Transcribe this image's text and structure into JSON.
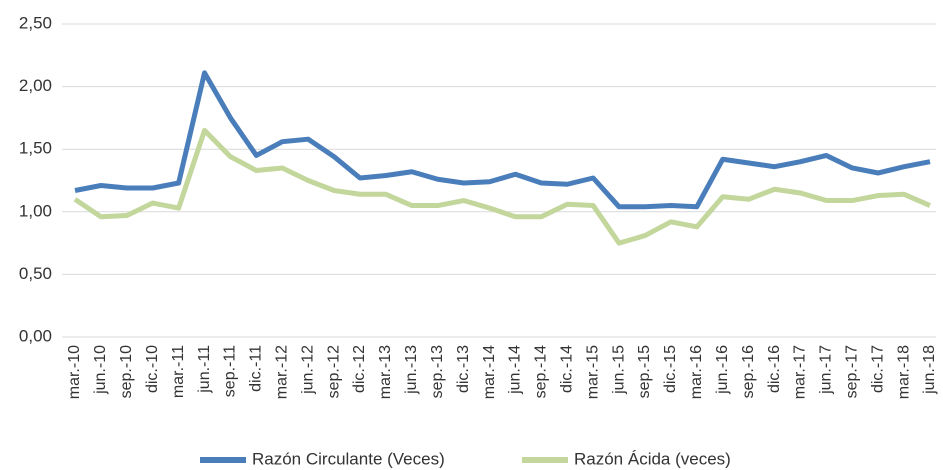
{
  "chart_data": {
    "type": "line",
    "categories": [
      "mar.-10",
      "jun.-10",
      "sep.-10",
      "dic.-10",
      "mar.-11",
      "jun.-11",
      "sep.-11",
      "dic.-11",
      "mar.-12",
      "jun.-12",
      "sep.-12",
      "dic.-12",
      "mar.-13",
      "jun.-13",
      "sep.-13",
      "dic.-13",
      "mar.-14",
      "jun.-14",
      "sep.-14",
      "dic.-14",
      "mar.-15",
      "jun.-15",
      "sep.-15",
      "dic.-15",
      "mar.-16",
      "jun.-16",
      "sep.-16",
      "dic.-16",
      "mar.-17",
      "jun.-17",
      "sep.-17",
      "dic.-17",
      "mar.-18",
      "jun.-18"
    ],
    "series": [
      {
        "name": "Razón Circulante (Veces)",
        "color": "#4a7ebb",
        "values": [
          1.17,
          1.21,
          1.19,
          1.19,
          1.23,
          2.11,
          1.75,
          1.45,
          1.56,
          1.58,
          1.44,
          1.27,
          1.29,
          1.32,
          1.26,
          1.23,
          1.24,
          1.3,
          1.23,
          1.22,
          1.27,
          1.04,
          1.04,
          1.05,
          1.04,
          1.42,
          1.39,
          1.36,
          1.4,
          1.45,
          1.35,
          1.31,
          1.36,
          1.4
        ]
      },
      {
        "name": "Razón Ácida (veces)",
        "color": "#c3d69b",
        "values": [
          1.1,
          0.96,
          0.97,
          1.07,
          1.03,
          1.65,
          1.44,
          1.33,
          1.35,
          1.25,
          1.17,
          1.14,
          1.14,
          1.05,
          1.05,
          1.09,
          1.03,
          0.96,
          0.96,
          1.06,
          1.05,
          0.75,
          0.81,
          0.92,
          0.88,
          1.12,
          1.1,
          1.18,
          1.15,
          1.09,
          1.09,
          1.13,
          1.14,
          1.05
        ]
      }
    ],
    "ylim": [
      0,
      2.5
    ],
    "yticks": [
      {
        "value": 0,
        "label": "0,00"
      },
      {
        "value": 0.5,
        "label": "0,50"
      },
      {
        "value": 1,
        "label": "1,00"
      },
      {
        "value": 1.5,
        "label": "1,50"
      },
      {
        "value": 2,
        "label": "2,00"
      },
      {
        "value": 2.5,
        "label": "2,50"
      }
    ],
    "grid": true,
    "legend": "bottom"
  }
}
